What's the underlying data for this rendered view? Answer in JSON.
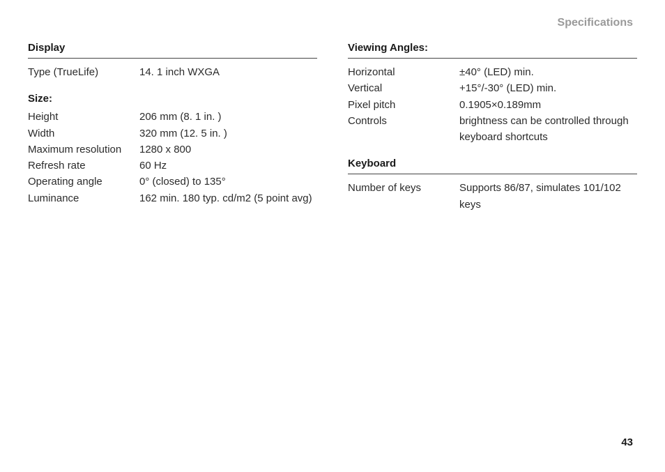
{
  "header": "Specifications",
  "pageNumber": "43",
  "left": {
    "display": {
      "title": "Display",
      "row1_label": "Type (TrueLife)",
      "row1_value": "14. 1 inch WXGA"
    },
    "size": {
      "title": "Size:",
      "height_label": "Height",
      "height_value": "206 mm (8. 1 in. )",
      "width_label": "Width",
      "width_value": "320 mm (12. 5 in. )",
      "maxres_label": "Maximum resolution",
      "maxres_value": "1280 x 800",
      "refresh_label": "Refresh rate",
      "refresh_value": "60 Hz",
      "opangle_label": "Operating angle",
      "opangle_value": "0° (closed) to 135°",
      "lum_label": "Luminance",
      "lum_value": "162 min. 180 typ. cd/m2 (5 point avg)"
    }
  },
  "right": {
    "viewing": {
      "title": "Viewing Angles:",
      "horiz_label": "Horizontal",
      "horiz_value": "±40° (LED) min.",
      "vert_label": "Vertical",
      "vert_value": "+15°/-30° (LED) min.",
      "pitch_label": "Pixel pitch",
      "pitch_value": "0.1905×0.189mm",
      "ctrl_label": "Controls",
      "ctrl_value": "brightness can be controlled through keyboard shortcuts"
    },
    "keyboard": {
      "title": "Keyboard",
      "keys_label": "Number of keys",
      "keys_value": "Supports 86/87, simulates 101/102 keys"
    }
  }
}
